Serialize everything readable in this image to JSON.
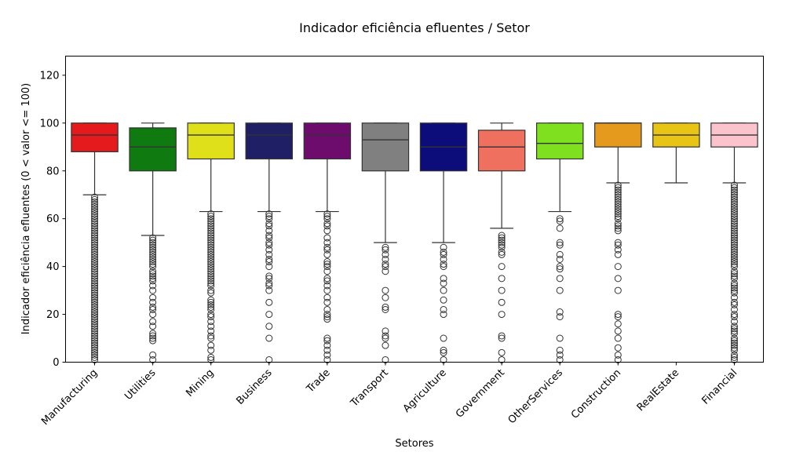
{
  "chart_data": {
    "type": "box",
    "title": "Indicador eficiência efluentes / Setor",
    "xlabel": "Setores",
    "ylabel": "Indicador eficiência efluentes (0 < valor <= 100)",
    "ylim": [
      0,
      128
    ],
    "yticks": [
      0,
      20,
      40,
      60,
      80,
      100,
      120
    ],
    "grid": false,
    "categories": [
      "Manufacturing",
      "Utilities",
      "Mining",
      "Business",
      "Trade",
      "Transport",
      "Agriculture",
      "Government",
      "OtherServices",
      "Construction",
      "RealEstate",
      "Financial"
    ],
    "colors": [
      "#e41a1c",
      "#0f7a0f",
      "#e0e01a",
      "#1f1f66",
      "#6e0c6e",
      "#808080",
      "#0c0c7a",
      "#f07060",
      "#7ee01e",
      "#e59a1e",
      "#e8c414",
      "#fbc4cc"
    ],
    "boxes": [
      {
        "whisker_low": 70,
        "q1": 88,
        "median": 95,
        "q3": 100,
        "whisker_high": 100
      },
      {
        "whisker_low": 53,
        "q1": 80,
        "median": 90,
        "q3": 98,
        "whisker_high": 100
      },
      {
        "whisker_low": 63,
        "q1": 85,
        "median": 95,
        "q3": 100,
        "whisker_high": 100
      },
      {
        "whisker_low": 63,
        "q1": 85,
        "median": 95,
        "q3": 100,
        "whisker_high": 100
      },
      {
        "whisker_low": 63,
        "q1": 85,
        "median": 95,
        "q3": 100,
        "whisker_high": 100
      },
      {
        "whisker_low": 50,
        "q1": 80,
        "median": 93,
        "q3": 100,
        "whisker_high": 100
      },
      {
        "whisker_low": 50,
        "q1": 80,
        "median": 90,
        "q3": 100,
        "whisker_high": 100
      },
      {
        "whisker_low": 56,
        "q1": 80,
        "median": 90,
        "q3": 97,
        "whisker_high": 100
      },
      {
        "whisker_low": 63,
        "q1": 85,
        "median": 91.5,
        "q3": 100,
        "whisker_high": 100
      },
      {
        "whisker_low": 75,
        "q1": 90,
        "median": 100,
        "q3": 100,
        "whisker_high": 100
      },
      {
        "whisker_low": 75,
        "q1": 90,
        "median": 95,
        "q3": 100,
        "whisker_high": 100
      },
      {
        "whisker_low": 75,
        "q1": 90,
        "median": 95,
        "q3": 100,
        "whisker_high": 100
      }
    ],
    "outliers": [
      [
        1,
        2,
        3,
        4,
        5,
        6,
        7,
        8,
        9,
        10,
        11,
        12,
        13,
        14,
        15,
        16,
        17,
        18,
        19,
        20,
        21,
        22,
        23,
        24,
        25,
        26,
        27,
        28,
        29,
        30,
        31,
        32,
        33,
        34,
        35,
        36,
        37,
        38,
        39,
        40,
        41,
        42,
        43,
        44,
        45,
        46,
        47,
        48,
        49,
        50,
        51,
        52,
        53,
        54,
        55,
        56,
        57,
        58,
        59,
        60,
        61,
        62,
        63,
        64,
        65,
        66,
        67,
        68,
        69
      ],
      [
        1,
        3,
        9,
        10,
        11,
        12,
        15,
        17,
        20,
        22,
        23,
        25,
        27,
        30,
        32,
        34,
        35,
        36,
        37,
        38,
        40,
        41,
        42,
        43,
        44,
        45,
        46,
        47,
        48,
        49,
        50,
        51,
        52
      ],
      [
        1,
        2,
        5,
        7,
        10,
        11,
        13,
        15,
        17,
        19,
        20,
        22,
        23,
        24,
        25,
        26,
        29,
        30,
        32,
        33,
        34,
        35,
        36,
        37,
        38,
        39,
        40,
        41,
        42,
        43,
        44,
        45,
        46,
        47,
        48,
        49,
        50,
        51,
        52,
        53,
        54,
        55,
        56,
        57,
        58,
        59,
        60,
        61,
        62
      ],
      [
        1,
        10,
        15,
        20,
        25,
        30,
        32,
        33,
        35,
        36,
        40,
        42,
        43,
        45,
        47,
        49,
        50,
        52,
        53,
        55,
        57,
        58,
        60,
        61,
        62
      ],
      [
        1,
        3,
        5,
        7,
        9,
        10,
        18,
        19,
        20,
        22,
        25,
        27,
        30,
        32,
        34,
        35,
        38,
        40,
        41,
        42,
        45,
        47,
        48,
        50,
        52,
        55,
        57,
        58,
        60,
        61,
        62
      ],
      [
        1,
        7,
        10,
        11,
        13,
        22,
        23,
        27,
        30,
        38,
        40,
        41,
        43,
        45,
        47,
        48
      ],
      [
        1,
        4,
        5,
        10,
        20,
        22,
        26,
        30,
        33,
        35,
        40,
        41,
        43,
        45,
        46,
        48
      ],
      [
        1,
        4,
        10,
        11,
        20,
        25,
        30,
        35,
        40,
        45,
        46,
        48,
        49,
        50,
        51,
        52,
        53
      ],
      [
        1,
        3,
        5,
        10,
        19,
        21,
        30,
        35,
        39,
        40,
        43,
        45,
        49,
        50,
        56,
        59,
        60
      ],
      [
        1,
        3,
        6,
        10,
        13,
        16,
        19,
        20,
        30,
        35,
        40,
        45,
        47,
        49,
        50,
        55,
        56,
        57,
        58,
        60,
        61,
        62,
        63,
        64,
        65,
        66,
        67,
        68,
        69,
        70,
        71,
        72,
        73,
        74
      ],
      [],
      [
        1,
        2,
        3,
        5,
        6,
        7,
        8,
        9,
        10,
        12,
        13,
        14,
        15,
        17,
        19,
        20,
        22,
        24,
        25,
        27,
        29,
        30,
        31,
        32,
        33,
        35,
        36,
        37,
        38,
        40,
        41,
        42,
        43,
        44,
        45,
        46,
        47,
        48,
        49,
        50,
        51,
        52,
        53,
        54,
        55,
        56,
        57,
        58,
        59,
        60,
        61,
        62,
        63,
        64,
        65,
        66,
        67,
        68,
        69,
        70,
        71,
        72,
        73,
        74
      ]
    ]
  }
}
